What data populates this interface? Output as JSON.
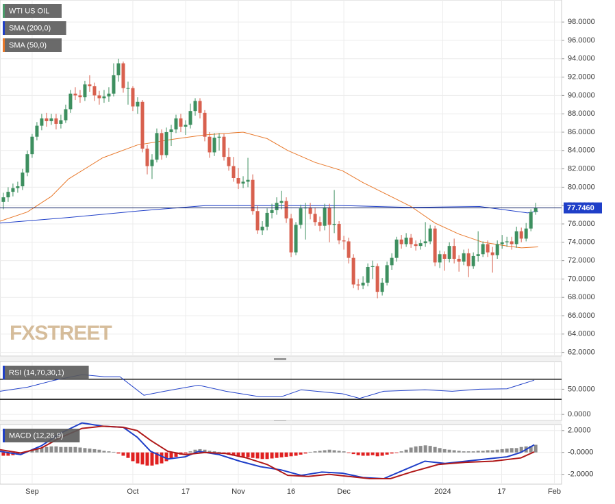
{
  "chart_data": [
    {
      "type": "candlestick",
      "title": "WTI US OIL",
      "legend_color": "#4a9a6a",
      "watermark": "FXSTREET",
      "up_color": "#3d8f5f",
      "down_color": "#d8604e",
      "ylim": [
        61.6,
        100.4
      ],
      "yticks": [
        {
          "value": 62,
          "label": "62.0000"
        },
        {
          "value": 64,
          "label": "64.0000"
        },
        {
          "value": 66,
          "label": "66.0000"
        },
        {
          "value": 68,
          "label": "68.0000"
        },
        {
          "value": 70,
          "label": "70.0000"
        },
        {
          "value": 72,
          "label": "72.0000"
        },
        {
          "value": 74,
          "label": "74.0000"
        },
        {
          "value": 76,
          "label": "76.0000"
        },
        {
          "value": 78,
          "label": "78.0000"
        },
        {
          "value": 80,
          "label": "80.0000"
        },
        {
          "value": 82,
          "label": "82.0000"
        },
        {
          "value": 84,
          "label": "84.0000"
        },
        {
          "value": 86,
          "label": "86.0000"
        },
        {
          "value": 88,
          "label": "88.0000"
        },
        {
          "value": 90,
          "label": "90.0000"
        },
        {
          "value": 92,
          "label": "92.0000"
        },
        {
          "value": 94,
          "label": "94.0000"
        },
        {
          "value": 96,
          "label": "96.0000"
        },
        {
          "value": 98,
          "label": "98.0000"
        }
      ],
      "open": [
        78.4,
        78.9,
        79.5,
        79.9,
        80.1,
        81.6,
        83.6,
        85.5,
        86.7,
        87.5,
        87.2,
        87.5,
        86.9,
        87.3,
        88.5,
        90.2,
        90.0,
        89.8,
        91.2,
        91.0,
        90.0,
        89.7,
        89.9,
        90.2,
        92.2,
        93.5,
        90.8,
        90.8,
        88.8,
        89.3,
        84.2,
        82.3,
        83.0,
        85.9,
        83.5,
        86.0,
        86.3,
        87.5,
        86.6,
        86.8,
        88.3,
        89.4,
        88.1,
        85.5,
        83.8,
        85.4,
        85.5,
        83.3,
        82.3,
        81.0,
        80.4,
        80.6,
        80.8,
        77.4,
        75.3,
        75.7,
        77.2,
        77.5,
        78.3,
        78.5,
        76.6,
        72.9,
        75.9,
        77.7,
        77.8,
        77.1,
        76.2,
        75.8,
        77.8,
        75.9,
        76.0,
        74.2,
        74.1,
        72.3,
        69.4,
        69.3,
        69.6,
        71.3,
        71.4,
        68.6,
        69.6,
        71.5,
        72.3,
        74.3,
        73.8,
        74.5,
        73.8,
        73.6,
        73.9,
        74.1,
        75.5,
        71.8,
        72.7,
        72.2,
        73.6,
        72.2,
        71.9,
        72.8,
        71.4,
        72.5,
        72.7,
        73.8,
        72.9,
        72.6,
        73.8,
        74.0,
        74.1,
        73.8,
        75.2,
        74.4,
        75.5,
        77.3
      ],
      "high": [
        79.4,
        80.0,
        80.4,
        80.6,
        82.0,
        84.0,
        85.8,
        87.1,
        88.0,
        88.1,
        88.0,
        88.0,
        87.9,
        89.0,
        90.6,
        90.9,
        90.6,
        91.6,
        92.2,
        91.4,
        90.5,
        90.6,
        90.9,
        93.5,
        94.0,
        93.7,
        91.5,
        91.0,
        89.8,
        89.5,
        84.6,
        83.6,
        86.4,
        86.3,
        86.5,
        86.8,
        87.9,
        88.0,
        87.3,
        89.1,
        89.7,
        89.7,
        88.4,
        86.0,
        85.9,
        85.9,
        85.8,
        84.3,
        83.3,
        82.1,
        81.2,
        83.2,
        81.4,
        78.0,
        76.3,
        77.7,
        78.2,
        78.9,
        79.6,
        78.9,
        77.1,
        76.2,
        78.1,
        78.3,
        78.3,
        77.8,
        76.8,
        78.2,
        78.2,
        79.7,
        76.3,
        74.7,
        74.5,
        72.7,
        70.0,
        70.3,
        71.7,
        72.0,
        71.7,
        70.1,
        71.9,
        72.8,
        74.6,
        74.8,
        75.0,
        74.9,
        74.2,
        74.3,
        76.2,
        75.9,
        75.8,
        73.1,
        73.0,
        74.0,
        74.4,
        72.6,
        73.2,
        73.3,
        72.9,
        75.2,
        74.1,
        74.2,
        73.5,
        74.2,
        74.8,
        74.6,
        74.6,
        75.7,
        75.6,
        76.1,
        77.6,
        78.3
      ],
      "low": [
        77.6,
        78.4,
        79.0,
        79.4,
        79.7,
        81.2,
        83.2,
        85.1,
        86.2,
        86.6,
        86.8,
        86.3,
        86.4,
        87.0,
        88.1,
        89.5,
        89.2,
        89.4,
        90.4,
        89.4,
        89.0,
        89.2,
        89.3,
        89.9,
        91.5,
        90.3,
        89.0,
        88.3,
        88.0,
        83.8,
        81.4,
        80.9,
        82.7,
        83.0,
        83.2,
        84.5,
        85.9,
        86.0,
        85.7,
        86.4,
        87.8,
        87.5,
        85.0,
        83.2,
        83.4,
        84.0,
        82.9,
        81.8,
        80.6,
        79.8,
        79.9,
        80.0,
        77.0,
        74.9,
        74.8,
        75.3,
        76.6,
        77.0,
        77.6,
        76.1,
        72.4,
        72.6,
        75.5,
        74.3,
        76.5,
        75.8,
        75.2,
        75.3,
        74.0,
        75.0,
        73.8,
        73.2,
        71.7,
        69.0,
        68.8,
        68.9,
        69.2,
        70.0,
        67.9,
        68.2,
        69.3,
        71.0,
        71.9,
        73.3,
        73.5,
        73.4,
        73.1,
        73.2,
        73.5,
        73.8,
        71.4,
        71.2,
        70.9,
        71.8,
        71.7,
        70.8,
        71.5,
        70.2,
        71.1,
        71.9,
        72.4,
        72.4,
        70.7,
        72.2,
        73.3,
        73.5,
        73.2,
        73.4,
        74.0,
        74.1,
        75.2,
        77.0
      ],
      "close": [
        78.9,
        79.5,
        79.9,
        80.1,
        81.6,
        83.6,
        85.5,
        86.7,
        87.5,
        87.2,
        87.5,
        86.9,
        87.3,
        88.5,
        90.2,
        90.0,
        89.8,
        91.2,
        91.0,
        90.0,
        89.7,
        89.9,
        90.2,
        92.2,
        93.5,
        90.8,
        90.8,
        88.8,
        89.3,
        84.2,
        82.3,
        83.0,
        85.9,
        83.5,
        86.0,
        86.3,
        87.5,
        86.6,
        86.8,
        88.3,
        89.4,
        88.1,
        85.5,
        83.8,
        85.4,
        85.5,
        83.3,
        82.3,
        81.0,
        80.4,
        80.6,
        80.8,
        77.4,
        75.3,
        75.7,
        77.2,
        77.5,
        78.3,
        78.5,
        76.6,
        72.9,
        75.9,
        77.7,
        77.8,
        77.1,
        76.2,
        75.8,
        77.8,
        75.9,
        76.0,
        74.2,
        74.1,
        72.3,
        69.4,
        69.3,
        69.6,
        71.3,
        71.4,
        68.6,
        69.6,
        71.5,
        72.3,
        74.3,
        73.8,
        74.5,
        73.8,
        73.6,
        73.9,
        74.1,
        75.5,
        71.8,
        72.7,
        72.2,
        73.6,
        72.2,
        71.9,
        72.8,
        71.4,
        72.5,
        72.7,
        73.8,
        72.9,
        72.6,
        73.8,
        74.0,
        74.1,
        73.8,
        75.2,
        74.4,
        75.5,
        77.3,
        77.75
      ],
      "series": [
        {
          "name": "SMA (200,0)",
          "color": "#1f3fc8",
          "x": [
            -0.7,
            13.6,
            27.9,
            42.1,
            56.4,
            70.7,
            85,
            99.3,
            109.3,
            111.5
          ],
          "values": [
            76.1,
            76.7,
            77.4,
            78.0,
            78.0,
            78.0,
            77.8,
            77.9,
            77.2,
            77.4
          ]
        },
        {
          "name": "SMA (50,0)",
          "color": "#e8782a",
          "x": [
            -0.7,
            5,
            10,
            13.6,
            20.7,
            27.9,
            35,
            42,
            50,
            55,
            59.3,
            65,
            70.7,
            75,
            80,
            85,
            90,
            95,
            100,
            105,
            108,
            111.5
          ],
          "values": [
            76.3,
            77.3,
            79.0,
            80.9,
            83.2,
            84.6,
            85.2,
            85.7,
            86.0,
            85.3,
            84.0,
            82.7,
            81.8,
            80.5,
            79.2,
            77.9,
            76.1,
            74.9,
            74.0,
            73.6,
            73.4,
            73.5
          ]
        }
      ],
      "last_price": {
        "value": 77.746,
        "label": "77.7460"
      },
      "last_price_color": "#1f3fc8"
    },
    {
      "type": "line",
      "title": "RSI (14,70,30,1)",
      "legend_color": "#1f3fc8",
      "ylim": [
        -12,
        105
      ],
      "yticks": [
        {
          "value": 0,
          "label": "0.0000"
        },
        {
          "value": 50,
          "label": "50.0000"
        }
      ],
      "levels": [
        70,
        30
      ],
      "series": [
        {
          "name": "RSI",
          "color": "#1f3fc8",
          "x": [
            -0.7,
            5,
            10.7,
            16.4,
            21,
            24.3,
            29.3,
            33.6,
            40.7,
            46.4,
            53.6,
            57.9,
            62.1,
            70.7,
            74.3,
            79.3,
            87.9,
            93.6,
            99.3,
            105,
            110.7
          ],
          "values": [
            46,
            54,
            68,
            79,
            75,
            75,
            38,
            46,
            58,
            46,
            35,
            35,
            49,
            41,
            32,
            46,
            49,
            46,
            50,
            51,
            68
          ]
        }
      ]
    },
    {
      "type": "macd",
      "title": "MACD (12,26,9)",
      "legend_color": "#1f3fc8",
      "up_color": "#8c8c8c",
      "down_color": "#e02020",
      "ylim": [
        -2.9,
        2.55
      ],
      "yticks": [
        {
          "value": 2,
          "label": "2.0000"
        },
        {
          "value": 0,
          "label": "-0.0000"
        },
        {
          "value": -2,
          "label": "-2.0000"
        }
      ],
      "xlim": [
        -0.7,
        116.4
      ],
      "xticks": [
        {
          "value": 6,
          "label": "Sep"
        },
        {
          "value": 27,
          "label": "Oct"
        },
        {
          "value": 38,
          "label": "17"
        },
        {
          "value": 49,
          "label": "Nov"
        },
        {
          "value": 60,
          "label": "16"
        },
        {
          "value": 71,
          "label": "Dec"
        },
        {
          "value": 91.6,
          "label": "2024"
        },
        {
          "value": 103.9,
          "label": "17"
        },
        {
          "value": 114.9,
          "label": "Feb"
        }
      ],
      "histogram": [
        -0.3,
        -0.3,
        -0.25,
        -0.2,
        -0.1,
        0.0,
        0.2,
        0.35,
        0.45,
        0.5,
        0.55,
        0.55,
        0.5,
        0.5,
        0.5,
        0.5,
        0.45,
        0.4,
        0.35,
        0.3,
        0.25,
        0.15,
        0.1,
        0.05,
        -0.1,
        -0.3,
        -0.5,
        -0.8,
        -1.0,
        -1.1,
        -1.2,
        -1.2,
        -1.1,
        -1.0,
        -0.8,
        -0.6,
        -0.4,
        -0.2,
        -0.1,
        0.1,
        0.25,
        0.3,
        0.25,
        0.15,
        0.1,
        0.05,
        -0.1,
        -0.2,
        -0.3,
        -0.35,
        -0.4,
        -0.45,
        -0.5,
        -0.55,
        -0.6,
        -0.6,
        -0.55,
        -0.5,
        -0.45,
        -0.4,
        -0.35,
        -0.3,
        -0.2,
        -0.1,
        0.05,
        0.1,
        0.15,
        0.2,
        0.25,
        0.2,
        0.15,
        0.1,
        -0.05,
        -0.15,
        -0.25,
        -0.3,
        -0.3,
        -0.25,
        -0.35,
        -0.3,
        -0.2,
        -0.1,
        -0.05,
        0.1,
        0.25,
        0.45,
        0.55,
        0.6,
        0.65,
        0.6,
        0.5,
        0.4,
        0.3,
        0.25,
        0.2,
        0.15,
        0.1,
        0.1,
        0.1,
        0.15,
        0.15,
        0.2,
        0.2,
        0.25,
        0.3,
        0.35,
        0.4,
        0.4,
        0.5,
        0.55,
        0.6,
        0.7
      ],
      "series": [
        {
          "name": "MACD",
          "color": "#1f3fc8",
          "x": [
            -0.7,
            3.6,
            7.9,
            12.1,
            16.4,
            20.7,
            25,
            27.9,
            30.7,
            34.3,
            37.9,
            40.7,
            45,
            49.3,
            53.6,
            57.9,
            62.1,
            66.4,
            70.7,
            75,
            79.3,
            83.6,
            87.9,
            92.1,
            96.4,
            100.7,
            105,
            107.9,
            110.7
          ],
          "values": [
            0.1,
            -0.2,
            0.6,
            1.8,
            2.7,
            2.4,
            2.3,
            1.4,
            0.1,
            -0.6,
            -0.4,
            0.1,
            -0.2,
            -0.8,
            -1.3,
            -1.6,
            -2.1,
            -1.8,
            -1.9,
            -2.3,
            -2.4,
            -1.6,
            -0.8,
            -1.0,
            -0.8,
            -0.6,
            -0.4,
            0.0,
            0.7
          ]
        },
        {
          "name": "Signal",
          "color": "#b01818",
          "x": [
            -0.7,
            3.6,
            7.9,
            12.1,
            16.4,
            20.7,
            25,
            27.9,
            30.7,
            34.3,
            37.9,
            42.1,
            46.4,
            50.7,
            55,
            59.3,
            63.6,
            67.9,
            72.1,
            76.4,
            80.7,
            85,
            90.7,
            96.4,
            102.1,
            107.9,
            110.7
          ],
          "values": [
            0.25,
            -0.05,
            0.4,
            1.4,
            2.2,
            2.4,
            2.3,
            2.0,
            1.1,
            0.1,
            -0.2,
            0.0,
            -0.1,
            -0.5,
            -1.1,
            -2.1,
            -2.2,
            -2.0,
            -2.2,
            -2.4,
            -2.4,
            -1.8,
            -1.1,
            -0.9,
            -0.8,
            -0.5,
            0.05
          ]
        }
      ]
    }
  ]
}
